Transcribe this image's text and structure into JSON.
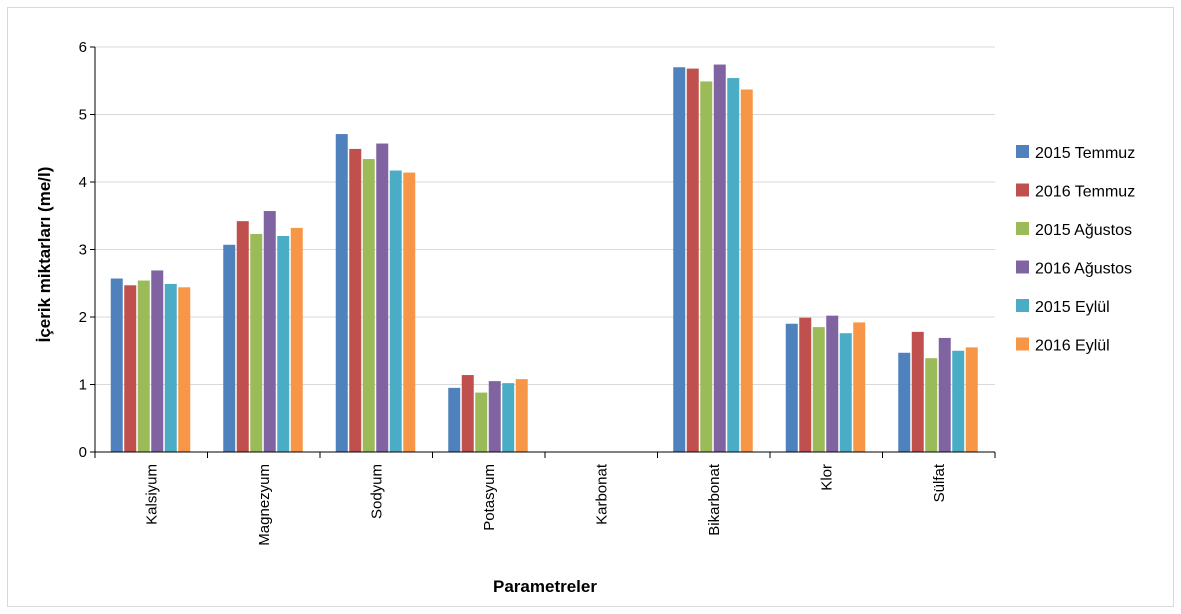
{
  "chart_data": {
    "type": "bar",
    "title": "",
    "xlabel": "Parametreler",
    "ylabel": "İçerik miktarları (me/l)",
    "ylim": [
      0,
      6
    ],
    "yticks": [
      "0",
      "1",
      "2",
      "3",
      "4",
      "5",
      "6"
    ],
    "grid": true,
    "legend_position": "right",
    "categories": [
      "Kalsiyum",
      "Magnezyum",
      "Sodyum",
      "Potasyum",
      "Karbonat",
      "Bikarbonat",
      "Klor",
      "Sülfat"
    ],
    "series": [
      {
        "name": "2015 Temmuz",
        "color": "#4f81bd",
        "values": [
          2.57,
          3.07,
          4.71,
          0.95,
          0,
          5.7,
          1.9,
          1.47
        ]
      },
      {
        "name": "2016 Temmuz",
        "color": "#c0504d",
        "values": [
          2.47,
          3.42,
          4.49,
          1.14,
          0,
          5.68,
          1.99,
          1.78
        ]
      },
      {
        "name": "2015 Ağustos",
        "color": "#9bbb59",
        "values": [
          2.54,
          3.23,
          4.34,
          0.88,
          0,
          5.49,
          1.85,
          1.39
        ]
      },
      {
        "name": "2016 Ağustos",
        "color": "#8064a2",
        "values": [
          2.69,
          3.57,
          4.57,
          1.05,
          0,
          5.74,
          2.02,
          1.69
        ]
      },
      {
        "name": "2015 Eylül",
        "color": "#4bacc6",
        "values": [
          2.49,
          3.2,
          4.17,
          1.02,
          0,
          5.54,
          1.76,
          1.5
        ]
      },
      {
        "name": "2016 Eylül",
        "color": "#f79646",
        "values": [
          2.44,
          3.32,
          4.14,
          1.08,
          0,
          5.37,
          1.92,
          1.55
        ]
      }
    ]
  }
}
